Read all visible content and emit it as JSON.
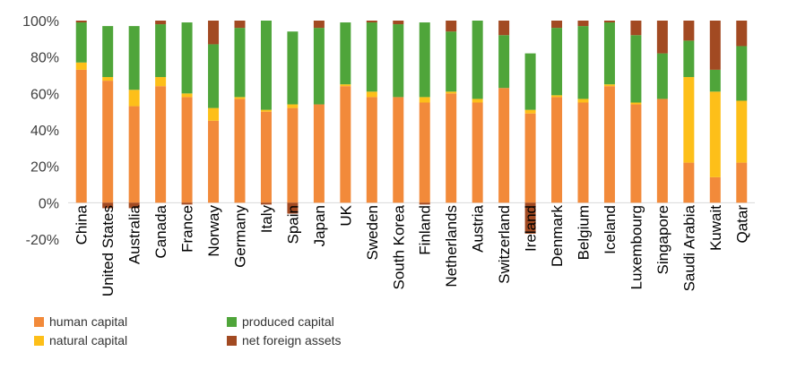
{
  "chart_data": {
    "type": "bar",
    "stacked": true,
    "title": "",
    "xlabel": "",
    "ylabel": "",
    "ylim": [
      -20,
      100
    ],
    "yticks": [
      "-20%",
      "0%",
      "20%",
      "40%",
      "60%",
      "80%",
      "100%"
    ],
    "grid": false,
    "legend_position": "bottom-left",
    "categories": [
      "China",
      "United States",
      "Australia",
      "Canada",
      "France",
      "Norway",
      "Germany",
      "Italy",
      "Spain",
      "Japan",
      "UK",
      "Sweden",
      "South Korea",
      "Finland",
      "Netherlands",
      "Austria",
      "Switzerland",
      "Ireland",
      "Denmark",
      "Belgium",
      "Iceland",
      "Luxembourg",
      "Singapore",
      "Saudi Arabia",
      "Kuwait",
      "Qatar"
    ],
    "series": [
      {
        "name": "human capital",
        "color": "#F28A3A",
        "values": [
          73,
          67,
          53,
          64,
          58,
          45,
          57,
          50,
          52,
          54,
          64,
          58,
          58,
          55,
          60,
          55,
          63,
          49,
          58,
          55,
          64,
          54,
          57,
          22,
          14,
          22
        ]
      },
      {
        "name": "natural capital",
        "color": "#FDBF19",
        "values": [
          4,
          2,
          9,
          5,
          2,
          7,
          1,
          1,
          2,
          0,
          1,
          3,
          0,
          3,
          1,
          2,
          0,
          2,
          1,
          2,
          1,
          1,
          0,
          47,
          47,
          34
        ]
      },
      {
        "name": "produced capital",
        "color": "#4FA53A",
        "values": [
          22,
          28,
          35,
          29,
          39,
          35,
          38,
          49,
          40,
          42,
          34,
          38,
          40,
          41,
          33,
          43,
          29,
          31,
          37,
          40,
          34,
          37,
          25,
          20,
          12,
          30
        ]
      },
      {
        "name": "net foreign assets",
        "color": "#A24A22",
        "values": [
          1,
          -3,
          -3,
          2,
          -1,
          13,
          4,
          -1,
          -6,
          4,
          0,
          1,
          2,
          -1,
          6,
          0,
          8,
          -17,
          4,
          3,
          1,
          8,
          18,
          11,
          27,
          14
        ]
      }
    ]
  }
}
